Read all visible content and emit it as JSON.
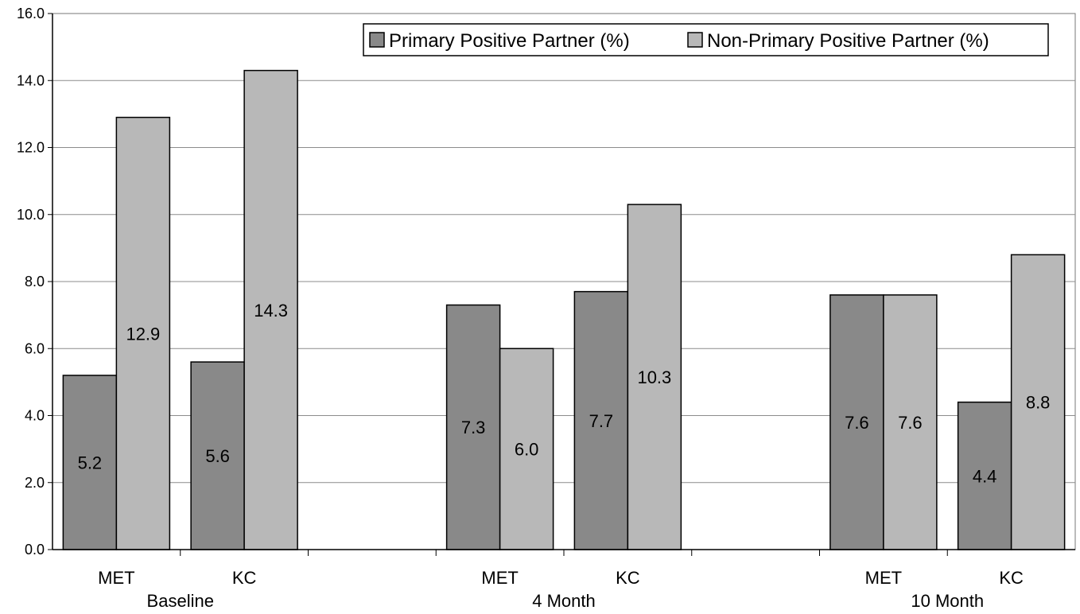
{
  "chart_data": {
    "type": "bar",
    "groups": [
      "Baseline",
      "4 Month",
      "10 Month"
    ],
    "subcategories": [
      "MET",
      "KC"
    ],
    "categories": [
      "MET",
      "KC",
      "MET",
      "KC",
      "MET",
      "KC"
    ],
    "series": [
      {
        "name": "Primary Positive Partner (%)",
        "color": "#898989",
        "values": [
          5.2,
          5.6,
          7.3,
          7.7,
          7.6,
          4.4
        ]
      },
      {
        "name": "Non-Primary Positive Partner (%)",
        "color": "#b8b8b8",
        "values": [
          12.9,
          14.3,
          6.0,
          10.3,
          7.6,
          8.8
        ]
      }
    ],
    "data_labels": [
      [
        "5.2",
        "5.6",
        "7.3",
        "7.7",
        "7.6",
        "4.4"
      ],
      [
        "12.9",
        "14.3",
        "6.0",
        "10.3",
        "7.6",
        "8.8"
      ]
    ],
    "y_ticks": [
      "0.0",
      "2.0",
      "4.0",
      "6.0",
      "8.0",
      "10.0",
      "12.0",
      "14.0",
      "16.0"
    ],
    "ylim": [
      0,
      16
    ],
    "title": "",
    "xlabel": "",
    "ylabel": "",
    "grid": true,
    "legend_position": "top-right"
  }
}
